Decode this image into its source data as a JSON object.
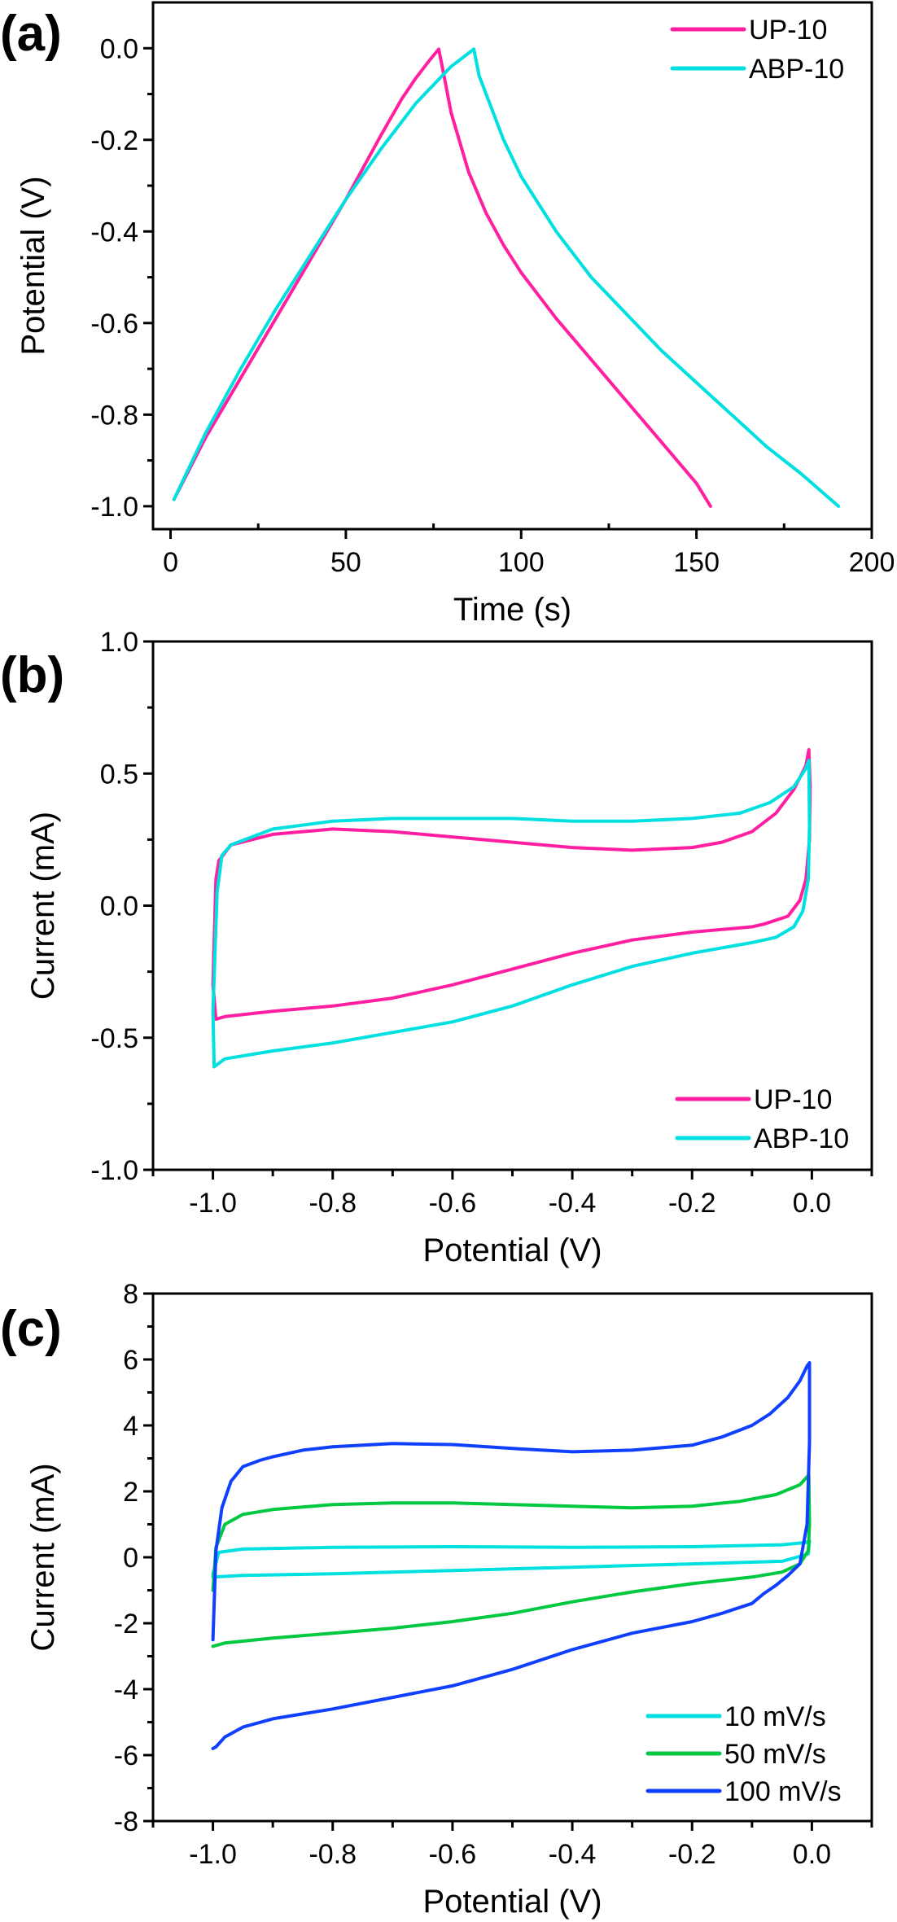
{
  "chart_data": [
    {
      "panel": "(a)",
      "type": "line",
      "title": "",
      "xlabel": "Time (s)",
      "ylabel": "Potential (V)",
      "xlim": [
        -5,
        200
      ],
      "ylim": [
        -1.05,
        0.1
      ],
      "xticks": [
        0,
        50,
        100,
        150,
        200
      ],
      "xtick_labels": [
        "0",
        "50",
        "100",
        "150",
        "200"
      ],
      "xminor": [
        25,
        75,
        125,
        175
      ],
      "yticks": [
        0.0,
        -0.2,
        -0.4,
        -0.6,
        -0.8,
        -1.0
      ],
      "ytick_labels": [
        "0.0",
        "-0.2",
        "-0.4",
        "-0.6",
        "-0.8",
        "-1.0"
      ],
      "yminor": [
        -0.1,
        -0.3,
        -0.5,
        -0.7,
        -0.9
      ],
      "grid": false,
      "legend_position": "top-right",
      "series": [
        {
          "name": "UP-10",
          "color": "#FF1FA0",
          "x": [
            1,
            10,
            20,
            30,
            40,
            50,
            60,
            66,
            70,
            74,
            76.5,
            78,
            80,
            85,
            90,
            95,
            100,
            110,
            120,
            130,
            140,
            150,
            154
          ],
          "y": [
            -0.985,
            -0.85,
            -0.72,
            -0.59,
            -0.46,
            -0.33,
            -0.19,
            -0.11,
            -0.065,
            -0.025,
            -0.002,
            -0.06,
            -0.14,
            -0.27,
            -0.36,
            -0.43,
            -0.49,
            -0.59,
            -0.68,
            -0.77,
            -0.86,
            -0.95,
            -1.0
          ]
        },
        {
          "name": "ABP-10",
          "color": "#00E0E0",
          "x": [
            1,
            10,
            20,
            30,
            40,
            50,
            60,
            70,
            80,
            86.5,
            88,
            95,
            100,
            110,
            120,
            130,
            140,
            150,
            160,
            170,
            180,
            190.5
          ],
          "y": [
            -0.985,
            -0.84,
            -0.7,
            -0.57,
            -0.45,
            -0.33,
            -0.22,
            -0.12,
            -0.04,
            -0.002,
            -0.06,
            -0.2,
            -0.28,
            -0.4,
            -0.5,
            -0.58,
            -0.66,
            -0.73,
            -0.8,
            -0.87,
            -0.93,
            -1.0
          ]
        }
      ]
    },
    {
      "panel": "(b)",
      "type": "line",
      "title": "",
      "xlabel": "Potential (V)",
      "ylabel": "Current (mA)",
      "xlim": [
        -1.1,
        0.1
      ],
      "ylim": [
        -1.0,
        1.0
      ],
      "xticks": [
        -1.0,
        -0.8,
        -0.6,
        -0.4,
        -0.2,
        0.0
      ],
      "xtick_labels": [
        "-1.0",
        "-0.8",
        "-0.6",
        "-0.4",
        "-0.2",
        "0.0"
      ],
      "xminor": [
        -1.1,
        -0.9,
        -0.7,
        -0.5,
        -0.3,
        -0.1,
        0.1
      ],
      "yticks": [
        1.0,
        0.5,
        0.0,
        -0.5,
        -1.0
      ],
      "ytick_labels": [
        "1.0",
        "0.5",
        "0.0",
        "-0.5",
        "-1.0"
      ],
      "yminor": [
        0.75,
        0.25,
        -0.25,
        -0.75
      ],
      "grid": false,
      "legend_position": "bottom-right",
      "series": [
        {
          "name": "UP-10",
          "color": "#FF1FA0",
          "x": [
            -1.0,
            -0.995,
            -0.99,
            -0.97,
            -0.9,
            -0.8,
            -0.7,
            -0.6,
            -0.5,
            -0.4,
            -0.3,
            -0.2,
            -0.15,
            -0.1,
            -0.06,
            -0.03,
            -0.01,
            -0.005,
            -0.003,
            -0.004,
            -0.01,
            -0.02,
            -0.04,
            -0.08,
            -0.1,
            -0.2,
            -0.3,
            -0.4,
            -0.5,
            -0.6,
            -0.7,
            -0.8,
            -0.9,
            -0.98,
            -0.995,
            -1.0
          ],
          "y": [
            -0.3,
            0.1,
            0.17,
            0.23,
            0.27,
            0.29,
            0.28,
            0.26,
            0.24,
            0.22,
            0.21,
            0.22,
            0.24,
            0.28,
            0.35,
            0.44,
            0.53,
            0.59,
            0.45,
            0.25,
            0.1,
            0.02,
            -0.04,
            -0.07,
            -0.08,
            -0.1,
            -0.13,
            -0.18,
            -0.24,
            -0.3,
            -0.35,
            -0.38,
            -0.4,
            -0.42,
            -0.43,
            -0.3
          ]
        },
        {
          "name": "ABP-10",
          "color": "#00E0E0",
          "x": [
            -1.0,
            -0.993,
            -0.985,
            -0.97,
            -0.9,
            -0.8,
            -0.7,
            -0.6,
            -0.5,
            -0.4,
            -0.3,
            -0.2,
            -0.12,
            -0.07,
            -0.03,
            -0.01,
            -0.005,
            -0.004,
            -0.006,
            -0.015,
            -0.03,
            -0.06,
            -0.1,
            -0.2,
            -0.3,
            -0.4,
            -0.5,
            -0.6,
            -0.7,
            -0.8,
            -0.9,
            -0.98,
            -0.998,
            -1.0
          ],
          "y": [
            -0.4,
            0.05,
            0.19,
            0.23,
            0.29,
            0.32,
            0.33,
            0.33,
            0.33,
            0.32,
            0.32,
            0.33,
            0.35,
            0.39,
            0.45,
            0.52,
            0.55,
            0.3,
            0.1,
            -0.02,
            -0.08,
            -0.12,
            -0.14,
            -0.18,
            -0.23,
            -0.3,
            -0.38,
            -0.44,
            -0.48,
            -0.52,
            -0.55,
            -0.58,
            -0.61,
            -0.4
          ]
        }
      ]
    },
    {
      "panel": "(c)",
      "type": "line",
      "title": "",
      "xlabel": "Potential (V)",
      "ylabel": "Current (mA)",
      "xlim": [
        -1.1,
        0.1
      ],
      "ylim": [
        -8,
        8
      ],
      "xticks": [
        -1.0,
        -0.8,
        -0.6,
        -0.4,
        -0.2,
        0.0
      ],
      "xtick_labels": [
        "-1.0",
        "-0.8",
        "-0.6",
        "-0.4",
        "-0.2",
        "0.0"
      ],
      "xminor": [
        -1.1,
        -0.9,
        -0.7,
        -0.5,
        -0.3,
        -0.1,
        0.1
      ],
      "yticks": [
        8,
        6,
        4,
        2,
        0,
        -2,
        -4,
        -6,
        -8
      ],
      "ytick_labels": [
        "8",
        "6",
        "4",
        "2",
        "0",
        "-2",
        "-4",
        "-6",
        "-8"
      ],
      "yminor": [
        7,
        5,
        3,
        1,
        -1,
        -3,
        -5,
        -7
      ],
      "grid": false,
      "legend_position": "bottom-right",
      "series": [
        {
          "name": "10 mV/s",
          "color": "#00E0E0",
          "x": [
            -1.0,
            -0.99,
            -0.95,
            -0.8,
            -0.6,
            -0.4,
            -0.2,
            -0.05,
            -0.01,
            -0.004,
            -0.006,
            -0.05,
            -0.2,
            -0.4,
            -0.6,
            -0.8,
            -0.95,
            -1.0,
            -1.0
          ],
          "y": [
            -0.5,
            0.15,
            0.25,
            0.3,
            0.32,
            0.3,
            0.32,
            0.38,
            0.45,
            0.5,
            0.1,
            -0.12,
            -0.2,
            -0.3,
            -0.4,
            -0.5,
            -0.55,
            -0.6,
            -0.5
          ]
        },
        {
          "name": "50 mV/s",
          "color": "#00C840",
          "x": [
            -1.0,
            -0.995,
            -0.98,
            -0.95,
            -0.9,
            -0.8,
            -0.7,
            -0.6,
            -0.5,
            -0.4,
            -0.3,
            -0.2,
            -0.12,
            -0.06,
            -0.02,
            -0.005,
            -0.004,
            -0.006,
            -0.02,
            -0.05,
            -0.1,
            -0.2,
            -0.3,
            -0.4,
            -0.5,
            -0.6,
            -0.7,
            -0.8,
            -0.9,
            -0.98,
            -1.0
          ],
          "y": [
            -1.0,
            0.3,
            1.0,
            1.3,
            1.45,
            1.6,
            1.65,
            1.65,
            1.6,
            1.55,
            1.5,
            1.55,
            1.7,
            1.9,
            2.2,
            2.5,
            1.0,
            0.2,
            -0.2,
            -0.45,
            -0.6,
            -0.8,
            -1.05,
            -1.35,
            -1.7,
            -1.95,
            -2.15,
            -2.3,
            -2.45,
            -2.6,
            -2.7
          ]
        },
        {
          "name": "100 mV/s",
          "color": "#1040FF",
          "x": [
            -1.0,
            -0.995,
            -0.985,
            -0.97,
            -0.95,
            -0.92,
            -0.9,
            -0.85,
            -0.8,
            -0.7,
            -0.6,
            -0.5,
            -0.4,
            -0.3,
            -0.2,
            -0.15,
            -0.1,
            -0.07,
            -0.04,
            -0.02,
            -0.008,
            -0.004,
            -0.004,
            -0.008,
            -0.02,
            -0.04,
            -0.06,
            -0.08,
            -0.1,
            -0.15,
            -0.2,
            -0.3,
            -0.4,
            -0.5,
            -0.6,
            -0.7,
            -0.8,
            -0.9,
            -0.95,
            -0.98,
            -0.995,
            -1.0
          ],
          "y": [
            -2.5,
            0.2,
            1.5,
            2.3,
            2.75,
            2.95,
            3.05,
            3.25,
            3.35,
            3.45,
            3.42,
            3.3,
            3.2,
            3.25,
            3.4,
            3.65,
            4.0,
            4.35,
            4.85,
            5.35,
            5.8,
            5.9,
            3.5,
            1.0,
            -0.2,
            -0.55,
            -0.85,
            -1.1,
            -1.4,
            -1.7,
            -1.95,
            -2.3,
            -2.8,
            -3.4,
            -3.9,
            -4.25,
            -4.6,
            -4.9,
            -5.15,
            -5.45,
            -5.75,
            -5.8
          ]
        }
      ]
    }
  ]
}
